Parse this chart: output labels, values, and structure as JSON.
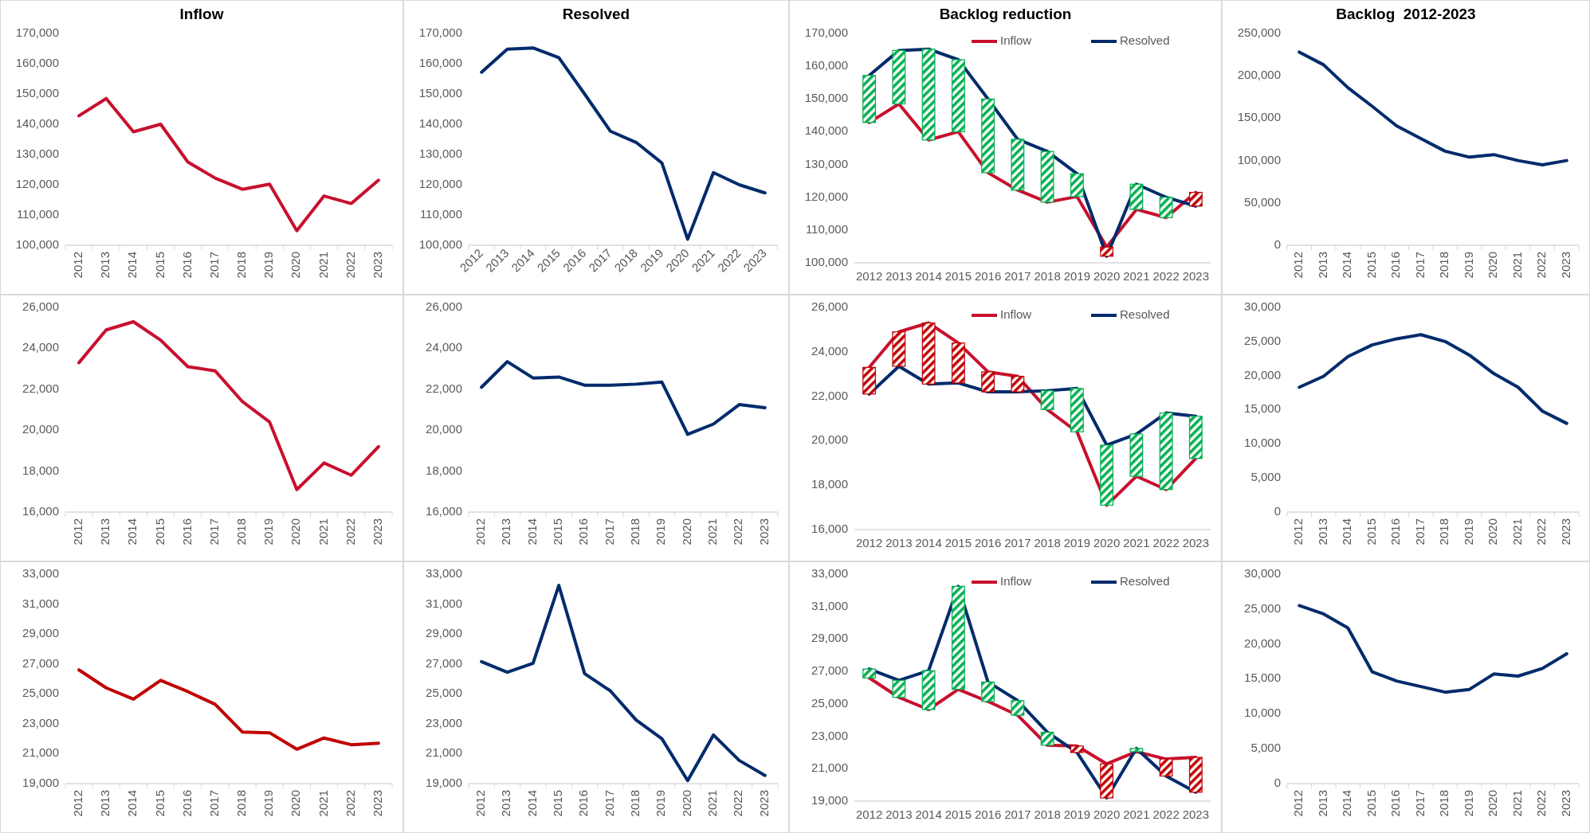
{
  "chart_data": [
    {
      "type": "line",
      "title": "Inflow",
      "categories": [
        "2012",
        "2013",
        "2014",
        "2015",
        "2016",
        "2017",
        "2018",
        "2019",
        "2020",
        "2021",
        "2022",
        "2023"
      ],
      "ylim": [
        100000,
        170000
      ],
      "yticks": [
        {
          "value": 100000,
          "label": "100,000"
        },
        {
          "value": 110000,
          "label": "110,000"
        },
        {
          "value": 120000,
          "label": "120,000"
        },
        {
          "value": 130000,
          "label": "130,000"
        },
        {
          "value": 140000,
          "label": "140,000"
        },
        {
          "value": 150000,
          "label": "150,000"
        },
        {
          "value": 160000,
          "label": "160,000"
        },
        {
          "value": 170000,
          "label": "170,000"
        }
      ],
      "series": [
        {
          "color": "#c8102e",
          "values": [
            142800,
            148500,
            137500,
            140000,
            127500,
            122200,
            118500,
            120200,
            104800,
            116300,
            113800,
            121500
          ]
        }
      ]
    },
    {
      "type": "line",
      "title": "Resolved",
      "categories": [
        "2012",
        "2013",
        "2014",
        "2015",
        "2016",
        "2017",
        "2018",
        "2019",
        "2020",
        "2021",
        "2022",
        "2023"
      ],
      "ylim": [
        100000,
        170000
      ],
      "yticks": [
        {
          "value": 100000,
          "label": "100,000"
        },
        {
          "value": 110000,
          "label": "110,000"
        },
        {
          "value": 120000,
          "label": "120,000"
        },
        {
          "value": 130000,
          "label": "130,000"
        },
        {
          "value": 140000,
          "label": "140,000"
        },
        {
          "value": 150000,
          "label": "150,000"
        },
        {
          "value": 160000,
          "label": "160,000"
        },
        {
          "value": 170000,
          "label": "170,000"
        }
      ],
      "series": [
        {
          "color": "#002b6b",
          "values": [
            157200,
            164800,
            165200,
            162000,
            150000,
            137700,
            134000,
            127200,
            102000,
            124000,
            120000,
            117300
          ]
        }
      ]
    },
    {
      "type": "line",
      "title": "Backlog reduction",
      "categories": [
        "2012",
        "2013",
        "2014",
        "2015",
        "2016",
        "2017",
        "2018",
        "2019",
        "2020",
        "2021",
        "2022",
        "2023"
      ],
      "ylim": [
        100000,
        170000
      ],
      "yticks": [
        {
          "value": 100000,
          "label": "100,000"
        },
        {
          "value": 110000,
          "label": "110,000"
        },
        {
          "value": 120000,
          "label": "120,000"
        },
        {
          "value": 130000,
          "label": "130,000"
        },
        {
          "value": 140000,
          "label": "140,000"
        },
        {
          "value": 150000,
          "label": "150,000"
        },
        {
          "value": 160000,
          "label": "160,000"
        },
        {
          "value": 170000,
          "label": "170,000"
        }
      ],
      "legend": "top right",
      "series": [
        {
          "name": "Inflow",
          "color": "#c8102e",
          "values": [
            142800,
            148500,
            137500,
            140000,
            127500,
            122200,
            118500,
            120200,
            104800,
            116300,
            113800,
            121500
          ]
        },
        {
          "name": "Resolved",
          "color": "#002b6b",
          "values": [
            157200,
            164800,
            165200,
            162000,
            150000,
            137700,
            134000,
            127200,
            102000,
            124000,
            120000,
            117300
          ]
        },
        {
          "type": "bar",
          "base": [
            142800,
            148500,
            137500,
            140000,
            127500,
            122200,
            118500,
            120200,
            102000,
            116300,
            113800,
            117300
          ],
          "values": [
            14400,
            16300,
            27700,
            22000,
            22500,
            15500,
            15500,
            7000,
            2800,
            7700,
            6200,
            4200
          ],
          "colors": [
            "#00b050",
            "#00b050",
            "#00b050",
            "#00b050",
            "#00b050",
            "#00b050",
            "#00b050",
            "#00b050",
            "#c00000",
            "#00b050",
            "#00b050",
            "#c00000"
          ]
        }
      ]
    },
    {
      "type": "line",
      "title": "Backlog  2012-2023",
      "categories": [
        "2012",
        "2013",
        "2014",
        "2015",
        "2016",
        "2017",
        "2018",
        "2019",
        "2020",
        "2021",
        "2022",
        "2023"
      ],
      "ylim": [
        0,
        250000
      ],
      "yticks": [
        {
          "value": 0,
          "label": "0"
        },
        {
          "value": 50000,
          "label": "50,000"
        },
        {
          "value": 100000,
          "label": "100,000"
        },
        {
          "value": 150000,
          "label": "150,000"
        },
        {
          "value": 200000,
          "label": "200,000"
        },
        {
          "value": 250000,
          "label": "250,000"
        }
      ],
      "series": [
        {
          "color": "#002b6b",
          "values": [
            228000,
            213000,
            186000,
            164000,
            141000,
            126000,
            111000,
            104000,
            107000,
            100000,
            95000,
            100000
          ]
        }
      ]
    },
    {
      "type": "line",
      "categories": [
        "2012",
        "2013",
        "2014",
        "2015",
        "2016",
        "2017",
        "2018",
        "2019",
        "2020",
        "2021",
        "2022",
        "2023"
      ],
      "ylim": [
        16000,
        26000
      ],
      "yticks": [
        {
          "value": 16000,
          "label": "16,000"
        },
        {
          "value": 18000,
          "label": "18,000"
        },
        {
          "value": 20000,
          "label": "20,000"
        },
        {
          "value": 22000,
          "label": "22,000"
        },
        {
          "value": 24000,
          "label": "24,000"
        },
        {
          "value": 26000,
          "label": "26,000"
        }
      ],
      "series": [
        {
          "color": "#c8102e",
          "values": [
            23300,
            24900,
            25300,
            24400,
            23100,
            22900,
            21400,
            20400,
            17100,
            18400,
            17800,
            19200
          ]
        }
      ]
    },
    {
      "type": "line",
      "categories": [
        "2012",
        "2013",
        "2014",
        "2015",
        "2016",
        "2017",
        "2018",
        "2019",
        "2020",
        "2021",
        "2022",
        "2023"
      ],
      "ylim": [
        16000,
        26000
      ],
      "yticks": [
        {
          "value": 16000,
          "label": "16,000"
        },
        {
          "value": 18000,
          "label": "18,000"
        },
        {
          "value": 20000,
          "label": "20,000"
        },
        {
          "value": 22000,
          "label": "22,000"
        },
        {
          "value": 24000,
          "label": "24,000"
        },
        {
          "value": 26000,
          "label": "26,000"
        }
      ],
      "series": [
        {
          "color": "#002b6b",
          "values": [
            22100,
            23350,
            22550,
            22600,
            22200,
            22200,
            22250,
            22350,
            19800,
            20300,
            21250,
            21100
          ]
        }
      ]
    },
    {
      "type": "line",
      "categories": [
        "2012",
        "2013",
        "2014",
        "2015",
        "2016",
        "2017",
        "2018",
        "2019",
        "2020",
        "2021",
        "2022",
        "2023"
      ],
      "ylim": [
        16000,
        26000
      ],
      "yticks": [
        {
          "value": 16000,
          "label": "16,000"
        },
        {
          "value": 18000,
          "label": "18,000"
        },
        {
          "value": 20000,
          "label": "20,000"
        },
        {
          "value": 22000,
          "label": "22,000"
        },
        {
          "value": 24000,
          "label": "24,000"
        },
        {
          "value": 26000,
          "label": "26,000"
        }
      ],
      "legend": "top right",
      "series": [
        {
          "name": "Inflow",
          "color": "#c8102e",
          "values": [
            23300,
            24900,
            25300,
            24400,
            23100,
            22900,
            21400,
            20400,
            17100,
            18400,
            17800,
            19200
          ]
        },
        {
          "name": "Resolved",
          "color": "#002b6b",
          "values": [
            22100,
            23350,
            22550,
            22600,
            22200,
            22200,
            22250,
            22350,
            19800,
            20300,
            21250,
            21100
          ]
        },
        {
          "type": "bar",
          "base": [
            22100,
            23350,
            22550,
            22600,
            22200,
            22200,
            21400,
            20400,
            17100,
            18400,
            17800,
            19200
          ],
          "values": [
            1200,
            1550,
            2750,
            1800,
            900,
            700,
            850,
            1950,
            2700,
            1900,
            3450,
            1900
          ],
          "colors": [
            "#c00000",
            "#c00000",
            "#c00000",
            "#c00000",
            "#c00000",
            "#c00000",
            "#00b050",
            "#00b050",
            "#00b050",
            "#00b050",
            "#00b050",
            "#00b050"
          ]
        }
      ]
    },
    {
      "type": "line",
      "categories": [
        "2012",
        "2013",
        "2014",
        "2015",
        "2016",
        "2017",
        "2018",
        "2019",
        "2020",
        "2021",
        "2022",
        "2023"
      ],
      "ylim": [
        0,
        30000
      ],
      "yticks": [
        0,
        {
          "value": 5000,
          "label": "5,000"
        },
        {
          "value": 10000,
          "label": "10,000"
        },
        {
          "value": 15000,
          "label": "15,000"
        },
        {
          "value": 20000,
          "label": "20,000"
        },
        {
          "value": 25000,
          "label": "25,000"
        },
        {
          "value": 30000,
          "label": "30,000"
        }
      ],
      "series": [
        {
          "color": "#002b6b",
          "values": [
            18300,
            19900,
            22800,
            24500,
            25400,
            26000,
            25000,
            23000,
            20300,
            18300,
            14800,
            13000
          ]
        }
      ]
    },
    {
      "type": "line",
      "categories": [
        "2012",
        "2013",
        "2014",
        "2015",
        "2016",
        "2017",
        "2018",
        "2019",
        "2020",
        "2021",
        "2022",
        "2023"
      ],
      "ylim": [
        19000,
        33000
      ],
      "yticks": [
        {
          "value": 19000,
          "label": "19,000"
        },
        {
          "value": 21000,
          "label": "21,000"
        },
        {
          "value": 23000,
          "label": "23,000"
        },
        {
          "value": 25000,
          "label": "25,000"
        },
        {
          "value": 27000,
          "label": "27,000"
        },
        {
          "value": 29000,
          "label": "29,000"
        },
        {
          "value": 31000,
          "label": "31,000"
        },
        {
          "value": 33000,
          "label": "33,000"
        }
      ],
      "series": [
        {
          "color": "#c00000",
          "values": [
            26600,
            25400,
            24650,
            25900,
            25150,
            24300,
            22450,
            22400,
            21300,
            22050,
            21600,
            21700
          ]
        }
      ]
    },
    {
      "type": "line",
      "categories": [
        "2012",
        "2013",
        "2014",
        "2015",
        "2016",
        "2017",
        "2018",
        "2019",
        "2020",
        "2021",
        "2022",
        "2023"
      ],
      "ylim": [
        19000,
        33000
      ],
      "yticks": [
        {
          "value": 19000,
          "label": "19,000"
        },
        {
          "value": 21000,
          "label": "21,000"
        },
        {
          "value": 23000,
          "label": "23,000"
        },
        {
          "value": 25000,
          "label": "25,000"
        },
        {
          "value": 27000,
          "label": "27,000"
        },
        {
          "value": 29000,
          "label": "29,000"
        },
        {
          "value": 31000,
          "label": "31,000"
        },
        {
          "value": 33000,
          "label": "33,000"
        }
      ],
      "series": [
        {
          "color": "#002b6b",
          "values": [
            27150,
            26450,
            27050,
            32250,
            26350,
            25200,
            23250,
            22000,
            19200,
            22250,
            20550,
            19550
          ]
        }
      ]
    },
    {
      "type": "line",
      "categories": [
        "2012",
        "2013",
        "2014",
        "2015",
        "2016",
        "2017",
        "2018",
        "2019",
        "2020",
        "2021",
        "2022",
        "2023"
      ],
      "ylim": [
        19000,
        33000
      ],
      "yticks": [
        {
          "value": 19000,
          "label": "19,000"
        },
        {
          "value": 21000,
          "label": "21,000"
        },
        {
          "value": 23000,
          "label": "23,000"
        },
        {
          "value": 25000,
          "label": "25,000"
        },
        {
          "value": 27000,
          "label": "27,000"
        },
        {
          "value": 29000,
          "label": "29,000"
        },
        {
          "value": 31000,
          "label": "31,000"
        },
        {
          "value": 33000,
          "label": "33,000"
        }
      ],
      "legend": "top right",
      "series": [
        {
          "name": "Inflow",
          "color": "#c8102e",
          "values": [
            26600,
            25400,
            24650,
            25900,
            25150,
            24300,
            22450,
            22400,
            21300,
            22050,
            21600,
            21700
          ]
        },
        {
          "name": "Resolved",
          "color": "#002b6b",
          "values": [
            27150,
            26450,
            27050,
            32250,
            26350,
            25200,
            23250,
            22000,
            19200,
            22250,
            20550,
            19550
          ]
        },
        {
          "type": "bar",
          "base": [
            26600,
            25400,
            24650,
            25900,
            25150,
            24300,
            22450,
            22000,
            19200,
            22050,
            20550,
            19550
          ],
          "values": [
            550,
            1050,
            2400,
            6350,
            1200,
            900,
            800,
            400,
            2100,
            200,
            1050,
            2150
          ],
          "colors": [
            "#00b050",
            "#00b050",
            "#00b050",
            "#00b050",
            "#00b050",
            "#00b050",
            "#00b050",
            "#c00000",
            "#c00000",
            "#00b050",
            "#c00000",
            "#c00000"
          ]
        }
      ]
    },
    {
      "type": "line",
      "categories": [
        "2012",
        "2013",
        "2014",
        "2015",
        "2016",
        "2017",
        "2018",
        "2019",
        "2020",
        "2021",
        "2022",
        "2023"
      ],
      "ylim": [
        0,
        30000
      ],
      "yticks": [
        0,
        {
          "value": 5000,
          "label": "5,000"
        },
        {
          "value": 10000,
          "label": "10,000"
        },
        {
          "value": 15000,
          "label": "15,000"
        },
        {
          "value": 20000,
          "label": "20,000"
        },
        {
          "value": 25000,
          "label": "25,000"
        },
        {
          "value": 30000,
          "label": "30,000"
        }
      ],
      "series": [
        {
          "color": "#002b6b",
          "values": [
            25500,
            24300,
            22300,
            16000,
            14700,
            13900,
            13100,
            13500,
            15700,
            15400,
            16500,
            18600
          ]
        }
      ]
    }
  ]
}
